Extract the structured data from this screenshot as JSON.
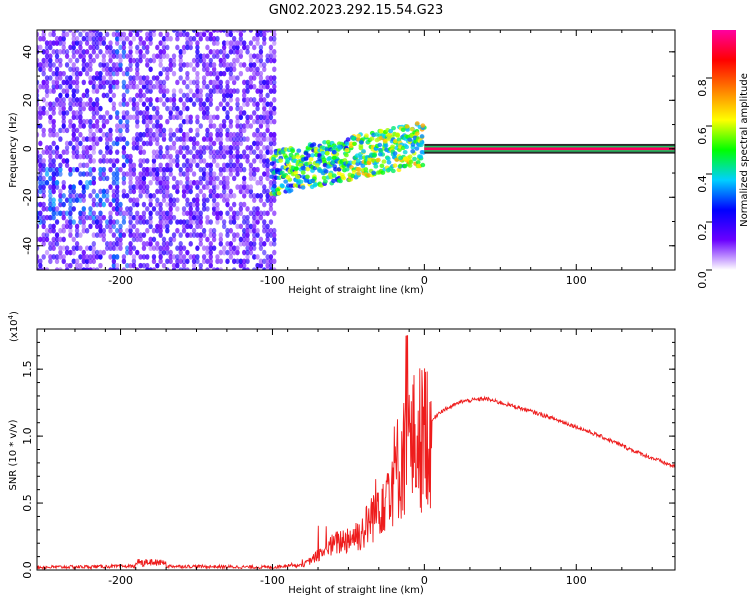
{
  "figure": {
    "title": "GN02.2023.292.15.54.G23"
  },
  "chart_data": [
    {
      "type": "heatmap",
      "xlabel": "Height of straight line (km)",
      "ylabel": "Frequency (Hz)",
      "xlim": [
        -255,
        165
      ],
      "ylim": [
        -50,
        49
      ],
      "xticks": [
        -200,
        -100,
        0,
        100
      ],
      "yticks": [
        -40,
        -20,
        0,
        20,
        40
      ],
      "colorbar": {
        "label": "Normalized spectral amplitude",
        "range": [
          0,
          1
        ],
        "ticks": [
          0.0,
          0.2,
          0.4,
          0.6,
          0.8
        ],
        "tick_labels": [
          "0.0",
          "0.2",
          "0.4",
          "0.6",
          "0.8"
        ],
        "colormap": [
          "#ffffff",
          "#6a00ff",
          "#0000ff",
          "#00d0ff",
          "#00ff00",
          "#ffff00",
          "#ff8000",
          "#ff0000",
          "#ff00a0"
        ]
      },
      "regions": [
        {
          "name": "noise",
          "x": [
            -255,
            -97
          ],
          "freq": [
            -50,
            49
          ],
          "amplitude": 0.1
        },
        {
          "name": "transition",
          "x": [
            -100,
            0
          ],
          "freq": [
            -18,
            8
          ],
          "amplitude": 0.35
        },
        {
          "name": "carrier",
          "x": [
            0,
            165
          ],
          "freq": [
            -1,
            1
          ],
          "amplitude": 0.95
        }
      ]
    },
    {
      "type": "line",
      "xlabel": "Height of straight line (km)",
      "ylabel": "SNR (10 * v/v)",
      "y_scale_label": "(x10",
      "y_scale_exp": "4",
      "xlim": [
        -255,
        165
      ],
      "ylim": [
        0,
        1.8
      ],
      "xticks": [
        -200,
        -100,
        0,
        100
      ],
      "yticks": [
        0.0,
        0.5,
        1.0,
        1.5
      ],
      "ytick_labels": [
        "0.0",
        "0.5",
        "1.0",
        "1.5"
      ],
      "series": [
        {
          "color": "#ee1c1c",
          "envelope": [
            [
              -255,
              0.02
            ],
            [
              -180,
              0.03
            ],
            [
              -100,
              0.02
            ],
            [
              -80,
              0.05
            ],
            [
              -60,
              0.25
            ],
            [
              -40,
              0.35
            ],
            [
              -25,
              0.7
            ],
            [
              -10,
              1.0
            ],
            [
              0,
              1.05
            ],
            [
              10,
              1.18
            ],
            [
              25,
              1.26
            ],
            [
              40,
              1.28
            ],
            [
              60,
              1.22
            ],
            [
              80,
              1.15
            ],
            [
              100,
              1.07
            ],
            [
              120,
              0.98
            ],
            [
              140,
              0.88
            ],
            [
              165,
              0.77
            ]
          ]
        }
      ]
    }
  ]
}
